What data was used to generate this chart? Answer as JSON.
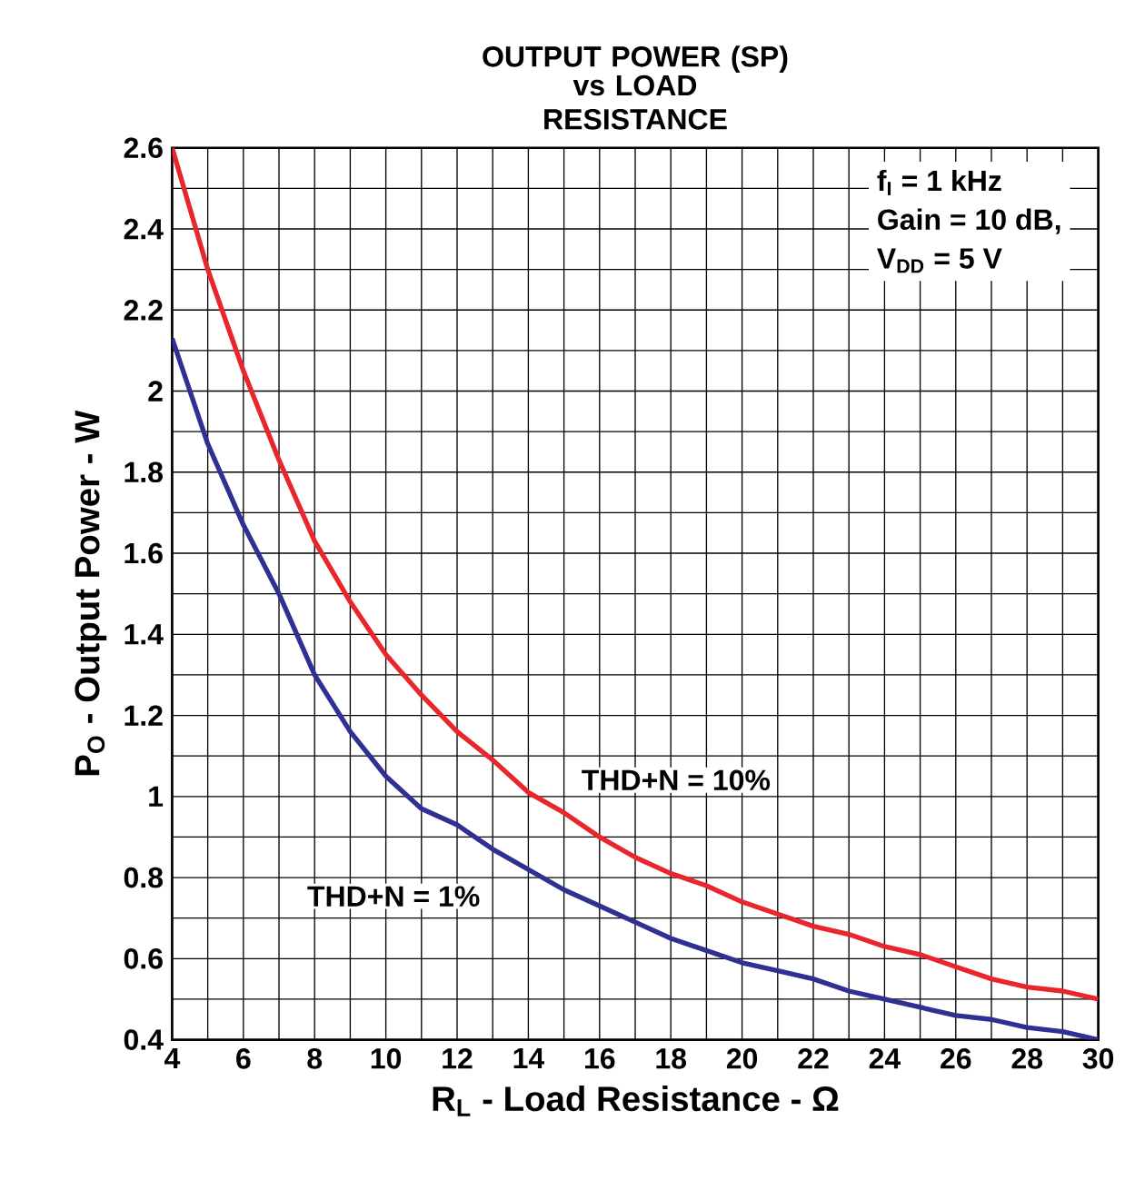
{
  "chart_data": {
    "type": "line",
    "title": "OUTPUT POWER (SP)",
    "subtitle": "vs LOAD RESISTANCE",
    "xlabel": "R$_{L}$ - Load Resistance - Ω",
    "ylabel": "P$_{O}$ - Output Power - W",
    "annotations": [
      "f$_{I}$ = 1 kHz",
      "Gain = 10 dB,",
      "V$_{DD}$ = 5 V"
    ],
    "x": [
      4,
      5,
      6,
      7,
      8,
      9,
      10,
      11,
      12,
      13,
      14,
      15,
      16,
      17,
      18,
      19,
      20,
      21,
      22,
      23,
      24,
      25,
      26,
      27,
      28,
      29,
      30
    ],
    "series": [
      {
        "name": "THD+N = 10%",
        "color": "#e8262b",
        "values": [
          2.6,
          2.3,
          2.05,
          1.83,
          1.63,
          1.48,
          1.35,
          1.25,
          1.16,
          1.09,
          1.01,
          0.96,
          0.9,
          0.85,
          0.81,
          0.78,
          0.74,
          0.71,
          0.68,
          0.66,
          0.63,
          0.61,
          0.58,
          0.55,
          0.53,
          0.52,
          0.5
        ]
      },
      {
        "name": "THD+N = 1%",
        "color": "#2e3192",
        "values": [
          2.13,
          1.87,
          1.67,
          1.5,
          1.3,
          1.16,
          1.05,
          0.97,
          0.93,
          0.87,
          0.82,
          0.77,
          0.73,
          0.69,
          0.65,
          0.62,
          0.59,
          0.57,
          0.55,
          0.52,
          0.5,
          0.48,
          0.46,
          0.45,
          0.43,
          0.42,
          0.4
        ]
      }
    ],
    "xlim": [
      4,
      30
    ],
    "ylim": [
      0.4,
      2.6
    ],
    "xticks": [
      4,
      6,
      8,
      10,
      12,
      14,
      16,
      18,
      20,
      22,
      24,
      26,
      28,
      30
    ],
    "yticks": [
      0.4,
      0.6,
      0.8,
      1,
      1.2,
      1.4,
      1.6,
      1.8,
      2,
      2.2,
      2.4,
      2.6
    ],
    "grid": true,
    "marker": "none",
    "line_style": "solid"
  }
}
